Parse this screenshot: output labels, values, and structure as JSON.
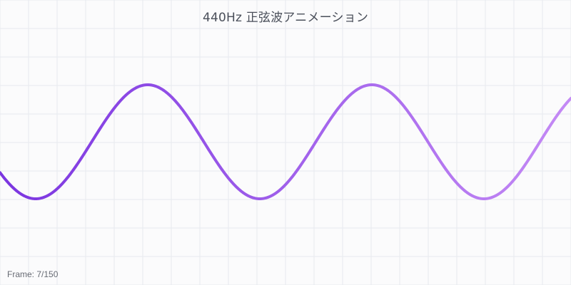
{
  "title": "440Hz 正弦波アニメーション",
  "frame_label": "Frame: 7/150",
  "colors": {
    "grid": "#e7e9ee",
    "background": "#fbfbfc",
    "wave_start": "#7b35e0",
    "wave_end": "#c48af5"
  }
}
